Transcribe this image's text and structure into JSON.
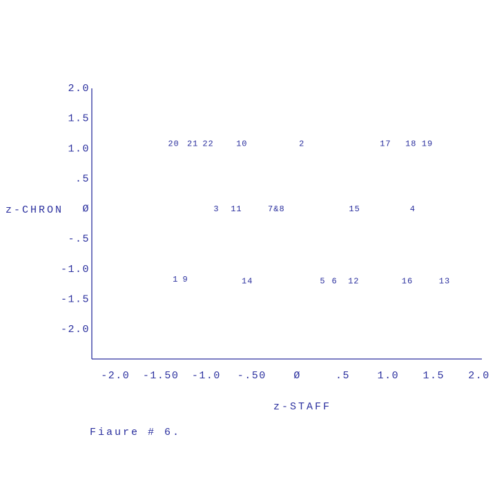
{
  "chart_data": {
    "type": "scatter",
    "xlabel": "z-STAFF",
    "ylabel": "z-CHRON",
    "caption": "Fiaure # 6.",
    "color": "#2a2f9e",
    "xlim": [
      -2.26,
      2.03
    ],
    "ylim": [
      -2.49,
      2.0
    ],
    "xticks": [
      {
        "value": -2,
        "label": "-2.0"
      },
      {
        "value": -1.5,
        "label": "-1.50"
      },
      {
        "value": -1,
        "label": "-1.0"
      },
      {
        "value": -0.5,
        "label": "-.50"
      },
      {
        "value": 0,
        "label": "Ø"
      },
      {
        "value": 0.5,
        "label": ".5"
      },
      {
        "value": 1,
        "label": "1.0"
      },
      {
        "value": 1.5,
        "label": "1.5"
      },
      {
        "value": 2,
        "label": "2.0"
      }
    ],
    "yticks": [
      {
        "value": 2,
        "label": "2.0"
      },
      {
        "value": 1.5,
        "label": "1.5"
      },
      {
        "value": 1,
        "label": "1.0"
      },
      {
        "value": 0.5,
        "label": ".5"
      },
      {
        "value": 0,
        "label": "Ø"
      },
      {
        "value": -0.5,
        "label": "-.5"
      },
      {
        "value": -1,
        "label": "-1.0"
      },
      {
        "value": -1.5,
        "label": "-1.5"
      },
      {
        "value": -2,
        "label": "-2.0"
      }
    ],
    "points": [
      {
        "label": "20",
        "x": -1.36,
        "y": 1.08
      },
      {
        "label": "21",
        "x": -1.15,
        "y": 1.08
      },
      {
        "label": "22",
        "x": -0.98,
        "y": 1.08
      },
      {
        "label": "10",
        "x": -0.61,
        "y": 1.08
      },
      {
        "label": "2",
        "x": 0.05,
        "y": 1.08
      },
      {
        "label": "17",
        "x": 0.97,
        "y": 1.08
      },
      {
        "label": "18",
        "x": 1.25,
        "y": 1.08
      },
      {
        "label": "19",
        "x": 1.43,
        "y": 1.08
      },
      {
        "label": "3",
        "x": -0.89,
        "y": 0
      },
      {
        "label": "11",
        "x": -0.67,
        "y": 0
      },
      {
        "label": "7&8",
        "x": -0.23,
        "y": 0
      },
      {
        "label": "15",
        "x": 0.63,
        "y": 0
      },
      {
        "label": "4",
        "x": 1.27,
        "y": 0
      },
      {
        "label": "1",
        "x": -1.34,
        "y": -1.17
      },
      {
        "label": "9",
        "x": -1.23,
        "y": -1.17
      },
      {
        "label": "14",
        "x": -0.55,
        "y": -1.2
      },
      {
        "label": "5",
        "x": 0.28,
        "y": -1.2
      },
      {
        "label": "6",
        "x": 0.41,
        "y": -1.2
      },
      {
        "label": "12",
        "x": 0.62,
        "y": -1.2
      },
      {
        "label": "16",
        "x": 1.21,
        "y": -1.2
      },
      {
        "label": "13",
        "x": 1.62,
        "y": -1.2
      }
    ]
  }
}
